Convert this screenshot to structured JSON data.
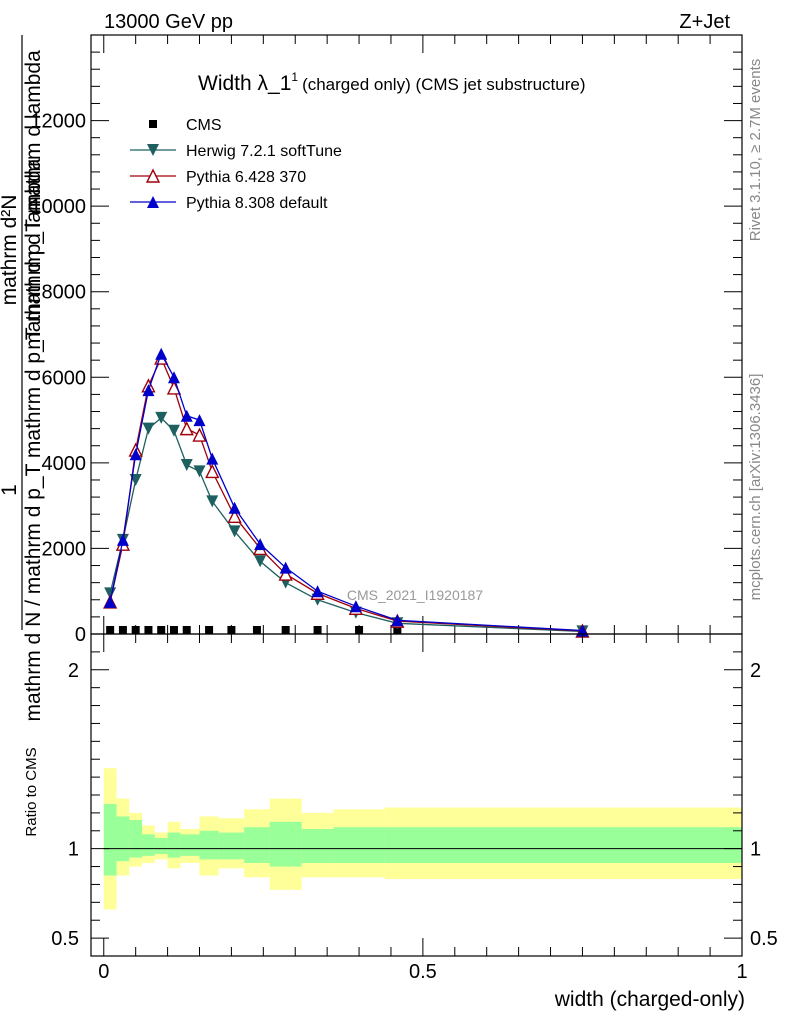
{
  "header": {
    "energy_label": "13000 GeV pp",
    "process_label": "Z+Jet",
    "right_label_top": "Rivet 3.1.10, ≥ 2.7M events",
    "right_label_bottom": "mcplots.cern.ch [arXiv:1306.3436]",
    "watermark": "CMS_2021_I1920187"
  },
  "chart_data": [
    {
      "type": "line",
      "title_main": "Width λ_1",
      "title_sup": "1",
      "title_rest": "(charged only) (CMS jet substructure)",
      "ylabel_numerator": "1",
      "ylabel_denominator": "mathrm d N / mathrm d p_T mathrm d p_T mathrm d lambda",
      "ylabel_top": "mathrm d²N",
      "ylim": [
        0,
        14000
      ],
      "yticks": [
        0,
        2000,
        4000,
        6000,
        8000,
        10000,
        12000
      ],
      "ytick_labels": [
        "0",
        "2000",
        "4000",
        "6000",
        "8000",
        "10000",
        "12000"
      ],
      "xlim": [
        -0.02,
        1.0
      ],
      "legend_position": "top-left",
      "series": [
        {
          "name": "CMS",
          "color": "#000000",
          "marker": "square",
          "x": [
            0.01,
            0.03,
            0.05,
            0.07,
            0.09,
            0.11,
            0.13,
            0.165,
            0.2,
            0.24,
            0.285,
            0.335,
            0.4,
            0.46
          ],
          "y": [
            0,
            0,
            0,
            0,
            0,
            0,
            0,
            0,
            0,
            0,
            0,
            0,
            0,
            0
          ]
        },
        {
          "name": "Herwig 7.2.1 softTune",
          "color": "#1e5f5f",
          "marker": "triangle-down",
          "x": [
            0.01,
            0.03,
            0.05,
            0.07,
            0.09,
            0.11,
            0.13,
            0.15,
            0.17,
            0.205,
            0.245,
            0.285,
            0.335,
            0.395,
            0.46,
            0.75
          ],
          "y": [
            950,
            2200,
            3600,
            4800,
            5050,
            4750,
            3950,
            3800,
            3100,
            2400,
            1700,
            1200,
            800,
            500,
            250,
            60
          ]
        },
        {
          "name": "Pythia 6.428 370",
          "color": "#a0000a",
          "marker": "triangle-up-open",
          "x": [
            0.01,
            0.03,
            0.05,
            0.07,
            0.09,
            0.11,
            0.13,
            0.15,
            0.17,
            0.205,
            0.245,
            0.285,
            0.335,
            0.395,
            0.46,
            0.75
          ],
          "y": [
            750,
            2100,
            4300,
            5800,
            6450,
            5750,
            4800,
            4650,
            3800,
            2750,
            2000,
            1400,
            950,
            600,
            300,
            70
          ]
        },
        {
          "name": "Pythia 8.308 default",
          "color": "#0000cc",
          "marker": "triangle-up",
          "x": [
            0.01,
            0.03,
            0.05,
            0.07,
            0.09,
            0.11,
            0.13,
            0.15,
            0.17,
            0.205,
            0.245,
            0.285,
            0.335,
            0.395,
            0.46,
            0.75
          ],
          "y": [
            750,
            2200,
            4200,
            5700,
            6550,
            6000,
            5100,
            5000,
            4100,
            2950,
            2100,
            1550,
            1000,
            650,
            320,
            80
          ]
        }
      ]
    },
    {
      "type": "bar",
      "ylabel": "Ratio to CMS",
      "ylim": [
        0.4,
        2.2
      ],
      "yticks": [
        0.5,
        1,
        2
      ],
      "ytick_labels": [
        "0.5",
        "1",
        "2"
      ],
      "xlim": [
        -0.02,
        1.0
      ],
      "xticks": [
        0,
        0.5,
        1
      ],
      "xtick_labels": [
        "0",
        "0.5",
        "1"
      ],
      "xlabel": "width (charged-only)",
      "reference_line": 1,
      "bands": {
        "bin_edges": [
          0.0,
          0.02,
          0.04,
          0.06,
          0.08,
          0.1,
          0.12,
          0.15,
          0.18,
          0.22,
          0.26,
          0.31,
          0.36,
          0.44,
          1.0
        ],
        "inner_low": [
          0.85,
          0.93,
          0.95,
          0.96,
          0.97,
          0.95,
          0.96,
          0.94,
          0.94,
          0.92,
          0.9,
          0.92,
          0.92,
          0.92
        ],
        "inner_high": [
          1.25,
          1.18,
          1.16,
          1.08,
          1.06,
          1.09,
          1.08,
          1.1,
          1.09,
          1.12,
          1.15,
          1.11,
          1.12,
          1.12
        ],
        "outer_low": [
          0.66,
          0.85,
          0.9,
          0.92,
          0.94,
          0.89,
          0.92,
          0.85,
          0.89,
          0.84,
          0.77,
          0.84,
          0.84,
          0.83
        ],
        "outer_high": [
          1.45,
          1.28,
          1.2,
          1.13,
          1.09,
          1.15,
          1.11,
          1.18,
          1.17,
          1.22,
          1.28,
          1.2,
          1.22,
          1.23
        ],
        "inner_color": "#99ff99",
        "outer_color": "#ffff99"
      }
    }
  ]
}
